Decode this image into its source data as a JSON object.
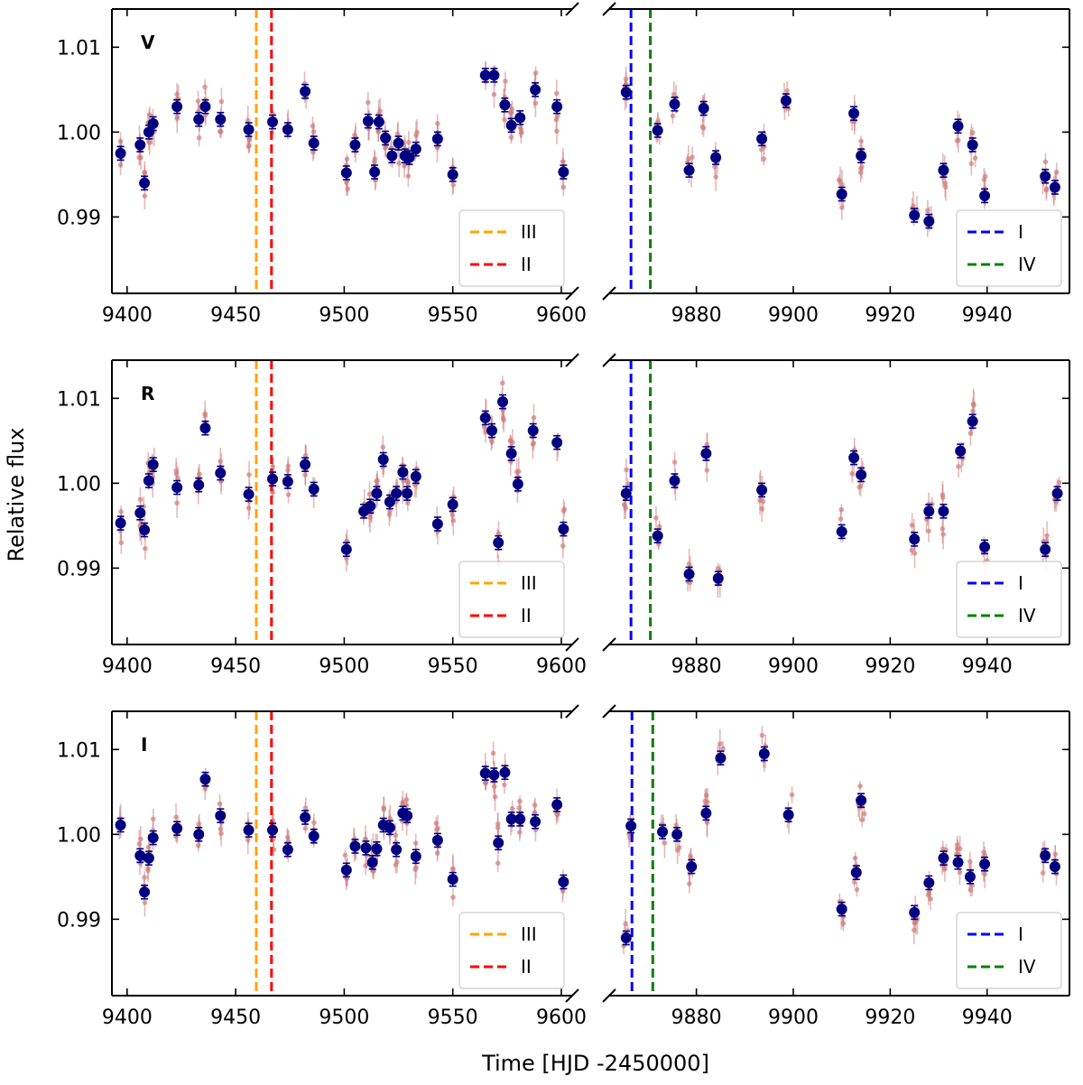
{
  "chart_data": {
    "type": "scatter",
    "xlabel": "Time [HJD -2450000]",
    "ylabel": "Relative flux",
    "ylim": [
      0.981,
      1.0145
    ],
    "yticks": [
      0.99,
      1.0,
      1.01
    ],
    "ytick_labels": [
      "0.99",
      "1.00",
      "1.01"
    ],
    "left_xlim": [
      9393,
      9605
    ],
    "left_xticks": [
      9400,
      9450,
      9500,
      9550,
      9600
    ],
    "right_xlim": [
      9862,
      9957
    ],
    "right_xticks": [
      9880,
      9900,
      9920,
      9940
    ],
    "colors": {
      "binned": "#000080",
      "raw": "#cd7f7f",
      "III": "#ffa500",
      "II": "#ff0000",
      "I": "#0000ff",
      "IV": "#008000"
    },
    "legend_left": [
      {
        "label": "III",
        "color": "#ffa500"
      },
      {
        "label": "II",
        "color": "#ff0000"
      }
    ],
    "legend_right": [
      {
        "label": "I",
        "color": "#0000ff"
      },
      {
        "label": "IV",
        "color": "#008000"
      }
    ],
    "panels": [
      {
        "band": "V",
        "vlines_left": [
          {
            "x": 9459.5,
            "color": "#ffa500"
          },
          {
            "x": 9466.5,
            "color": "#ff0000"
          }
        ],
        "vlines_right": [
          {
            "x": 9866.5,
            "color": "#0000ff"
          },
          {
            "x": 9870.5,
            "color": "#008000"
          }
        ],
        "binned_left": [
          [
            9397,
            0.9975
          ],
          [
            9406,
            0.9985
          ],
          [
            9408,
            0.994
          ],
          [
            9410,
            1.0
          ],
          [
            9412,
            1.001
          ],
          [
            9423,
            1.003
          ],
          [
            9433,
            1.0015
          ],
          [
            9436,
            1.003
          ],
          [
            9443,
            1.0015
          ],
          [
            9456,
            1.0003
          ],
          [
            9467,
            1.0012
          ],
          [
            9474,
            1.0003
          ],
          [
            9482,
            1.0048
          ],
          [
            9486,
            0.9987
          ],
          [
            9501,
            0.9952
          ],
          [
            9505,
            0.9985
          ],
          [
            9511,
            1.0013
          ],
          [
            9514,
            0.9953
          ],
          [
            9516,
            1.0012
          ],
          [
            9519,
            0.9993
          ],
          [
            9522,
            0.9972
          ],
          [
            9525,
            0.9987
          ],
          [
            9528,
            0.9972
          ],
          [
            9530,
            0.997
          ],
          [
            9533,
            0.998
          ],
          [
            9543,
            0.9992
          ],
          [
            9550,
            0.995
          ],
          [
            9565,
            1.0067
          ],
          [
            9569,
            1.0067
          ],
          [
            9574,
            1.0032
          ],
          [
            9577,
            1.0008
          ],
          [
            9581,
            1.0017
          ],
          [
            9588,
            1.005
          ],
          [
            9598,
            1.003
          ],
          [
            9601,
            0.9953
          ]
        ],
        "binned_right": [
          [
            9865.5,
            1.0047
          ],
          [
            9872,
            1.0002
          ],
          [
            9875.5,
            1.0033
          ],
          [
            9878.5,
            0.9955
          ],
          [
            9881.5,
            1.0028
          ],
          [
            9884,
            0.997
          ],
          [
            9893.5,
            0.9992
          ],
          [
            9898.5,
            1.0037
          ],
          [
            9910,
            0.9927
          ],
          [
            9912.5,
            1.0022
          ],
          [
            9914,
            0.9972
          ],
          [
            9925,
            0.9902
          ],
          [
            9928,
            0.9895
          ],
          [
            9931,
            0.9955
          ],
          [
            9934,
            1.0007
          ],
          [
            9937,
            0.9985
          ],
          [
            9939.5,
            0.9925
          ],
          [
            9952,
            0.9948
          ],
          [
            9954,
            0.9935
          ]
        ]
      },
      {
        "band": "R",
        "vlines_left": [
          {
            "x": 9459.5,
            "color": "#ffa500"
          },
          {
            "x": 9466.5,
            "color": "#ff0000"
          }
        ],
        "vlines_right": [
          {
            "x": 9866.5,
            "color": "#0000ff"
          },
          {
            "x": 9870.5,
            "color": "#008000"
          }
        ],
        "binned_left": [
          [
            9397,
            0.9953
          ],
          [
            9406,
            0.9965
          ],
          [
            9408,
            0.9945
          ],
          [
            9410,
            1.0003
          ],
          [
            9412,
            1.0022
          ],
          [
            9423,
            0.9995
          ],
          [
            9433,
            0.9998
          ],
          [
            9436,
            1.0065
          ],
          [
            9443,
            1.0012
          ],
          [
            9456,
            0.9987
          ],
          [
            9467,
            1.0005
          ],
          [
            9474,
            1.0002
          ],
          [
            9482,
            1.0022
          ],
          [
            9486,
            0.9993
          ],
          [
            9501,
            0.9922
          ],
          [
            9509,
            0.9967
          ],
          [
            9512,
            0.9973
          ],
          [
            9515,
            0.9988
          ],
          [
            9518,
            1.0028
          ],
          [
            9521,
            0.9978
          ],
          [
            9524,
            0.9988
          ],
          [
            9527,
            1.0013
          ],
          [
            9529,
            0.9988
          ],
          [
            9533,
            1.0008
          ],
          [
            9543,
            0.9952
          ],
          [
            9550,
            0.9975
          ],
          [
            9565,
            1.0077
          ],
          [
            9568,
            1.0062
          ],
          [
            9571,
            0.993
          ],
          [
            9573,
            1.0096
          ],
          [
            9577,
            1.0035
          ],
          [
            9580,
            0.9999
          ],
          [
            9587,
            1.0062
          ],
          [
            9598,
            1.0048
          ],
          [
            9601,
            0.9946
          ]
        ],
        "binned_right": [
          [
            9865.5,
            0.9988
          ],
          [
            9872,
            0.9938
          ],
          [
            9875.5,
            1.0003
          ],
          [
            9878.5,
            0.9893
          ],
          [
            9882,
            1.0035
          ],
          [
            9884.5,
            0.9888
          ],
          [
            9893.5,
            0.9992
          ],
          [
            9910,
            0.9943
          ],
          [
            9912.5,
            1.003
          ],
          [
            9914,
            1.001
          ],
          [
            9925,
            0.9934
          ],
          [
            9928,
            0.9967
          ],
          [
            9931,
            0.9967
          ],
          [
            9934.5,
            1.0038
          ],
          [
            9937,
            1.0073
          ],
          [
            9939.5,
            0.9925
          ],
          [
            9952,
            0.9922
          ],
          [
            9954.5,
            0.9988
          ]
        ]
      },
      {
        "band": "I",
        "vlines_left": [
          {
            "x": 9459.5,
            "color": "#ffa500"
          },
          {
            "x": 9466.5,
            "color": "#ff0000"
          }
        ],
        "vlines_right": [
          {
            "x": 9866.7,
            "color": "#0000ff"
          },
          {
            "x": 9871,
            "color": "#008000"
          }
        ],
        "binned_left": [
          [
            9397,
            1.0011
          ],
          [
            9406,
            0.9975
          ],
          [
            9408,
            0.9932
          ],
          [
            9410,
            0.9972
          ],
          [
            9412,
            0.9996
          ],
          [
            9423,
            1.0007
          ],
          [
            9433,
            1.0
          ],
          [
            9436,
            1.0065
          ],
          [
            9443,
            1.0022
          ],
          [
            9456,
            1.0005
          ],
          [
            9467,
            1.0005
          ],
          [
            9474,
            0.9982
          ],
          [
            9482,
            1.002
          ],
          [
            9486,
            0.9998
          ],
          [
            9501,
            0.9958
          ],
          [
            9505,
            0.9986
          ],
          [
            9510,
            0.9984
          ],
          [
            9513,
            0.9967
          ],
          [
            9515,
            0.9983
          ],
          [
            9518,
            1.0011
          ],
          [
            9521,
            1.0008
          ],
          [
            9524,
            0.9982
          ],
          [
            9527,
            1.0025
          ],
          [
            9529,
            1.0022
          ],
          [
            9533,
            0.9974
          ],
          [
            9543,
            0.9993
          ],
          [
            9550,
            0.9947
          ],
          [
            9565,
            1.0072
          ],
          [
            9569,
            1.007
          ],
          [
            9571,
            0.999
          ],
          [
            9574,
            1.0073
          ],
          [
            9577,
            1.0018
          ],
          [
            9581,
            1.0018
          ],
          [
            9588,
            1.0015
          ],
          [
            9598,
            1.0035
          ],
          [
            9601,
            0.9944
          ]
        ],
        "binned_right": [
          [
            9865.5,
            0.9878
          ],
          [
            9866.5,
            1.001
          ],
          [
            9873,
            1.0003
          ],
          [
            9876,
            1.0
          ],
          [
            9879,
            0.9962
          ],
          [
            9882,
            1.0025
          ],
          [
            9885,
            1.009
          ],
          [
            9894,
            1.0095
          ],
          [
            9899,
            1.0023
          ],
          [
            9910,
            0.9912
          ],
          [
            9913,
            0.9955
          ],
          [
            9914,
            1.004
          ],
          [
            9925,
            0.9908
          ],
          [
            9928,
            0.9943
          ],
          [
            9931,
            0.9972
          ],
          [
            9934,
            0.9967
          ],
          [
            9936.5,
            0.995
          ],
          [
            9939.5,
            0.9965
          ],
          [
            9952,
            0.9975
          ],
          [
            9954,
            0.9962
          ]
        ]
      }
    ]
  }
}
